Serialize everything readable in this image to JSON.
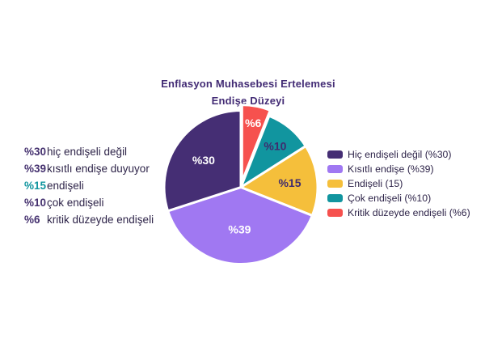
{
  "title": {
    "line1": "Enflasyon Muhasebesi Ertelemesi",
    "line2": "Endişe Düzeyi",
    "color": "#432c75"
  },
  "left_list": {
    "items": [
      {
        "pct": "%30",
        "label": "hiç endişeli değil",
        "pct_color": "#45316f"
      },
      {
        "pct": "%39",
        "label": "kısıtlı endişe duyuyor",
        "pct_color": "#45316f"
      },
      {
        "pct": "%15",
        "label": "endişeli",
        "pct_color": "#11959f"
      },
      {
        "pct": "%10",
        "label": "çok endişeli",
        "pct_color": "#45316f"
      },
      {
        "pct": "%6",
        "label": "kritik düzeyde endişeli",
        "pct_color": "#45316f"
      }
    ]
  },
  "legend": {
    "position": "right",
    "items": [
      {
        "label": "Hiç endişeli değil (%30)",
        "color": "#452e74"
      },
      {
        "label": "Kısıtlı endişe (%39)",
        "color": "#a078f2"
      },
      {
        "label": "Endişeli (15)",
        "color": "#f5bf3b"
      },
      {
        "label": "Çok endişeli (%10)",
        "color": "#11959f"
      },
      {
        "label": "Kritik düzeyde endişeli (%6)",
        "color": "#f6514e"
      }
    ]
  },
  "chart_data": {
    "type": "pie",
    "title": "Enflasyon Muhasebesi Ertelemesi Endişe Düzeyi",
    "start_angle_deg": 0,
    "direction": "clockwise",
    "background": "#ffffff",
    "slice_gap_stroke": "#ffffff",
    "slices": [
      {
        "name": "Kritik düzeyde endişeli",
        "pct_label": "%6",
        "value": 6,
        "color": "#f6514e",
        "label_color": "#ffffff",
        "exploded": true,
        "label_r": 0.78
      },
      {
        "name": "Çok endişeli",
        "pct_label": "%10",
        "value": 10,
        "color": "#11959f",
        "label_color": "#3f2b6e",
        "exploded": false,
        "label_r": 0.7
      },
      {
        "name": "Endişeli",
        "pct_label": "%15",
        "value": 15,
        "color": "#f5bf3b",
        "label_color": "#3f2b6e",
        "exploded": false,
        "label_r": 0.64
      },
      {
        "name": "Kısıtlı endişe",
        "pct_label": "%39",
        "value": 39,
        "color": "#a078f2",
        "label_color": "#ffffff",
        "exploded": false,
        "label_r": 0.55
      },
      {
        "name": "Hiç endişeli değil",
        "pct_label": "%30",
        "value": 30,
        "color": "#452e74",
        "label_color": "#ffffff",
        "exploded": false,
        "label_r": 0.6
      }
    ]
  }
}
